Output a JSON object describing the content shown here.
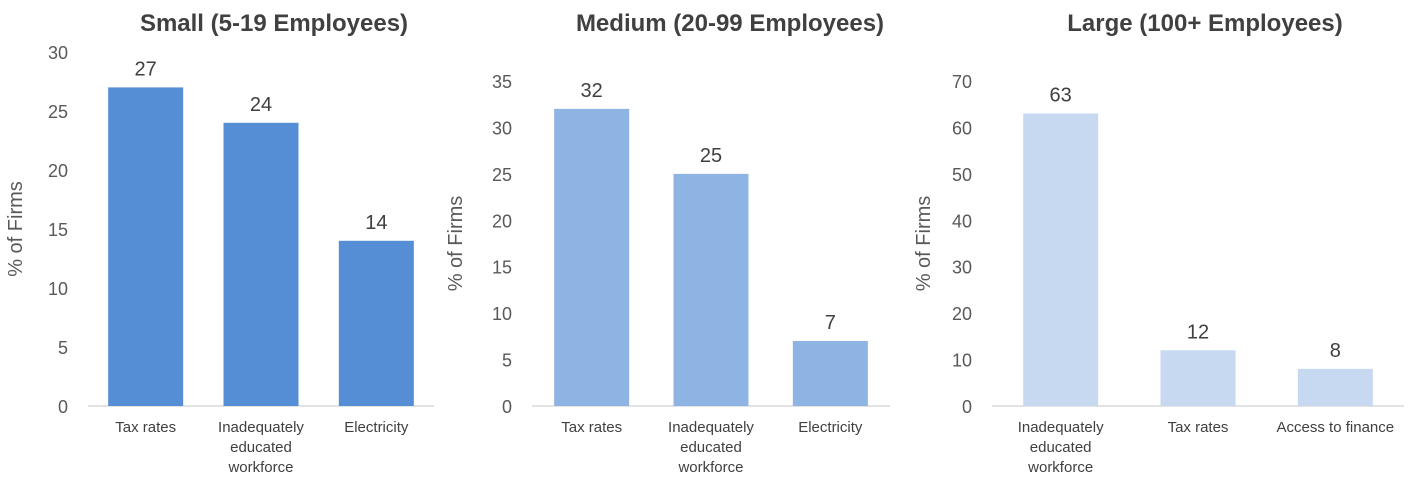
{
  "chart_data": [
    {
      "type": "bar",
      "title": "Small (5-19 Employees)",
      "ylabel": "% of Firms",
      "categories": [
        "Tax rates",
        "Inadequately educated workforce",
        "Electricity"
      ],
      "values": [
        27,
        24,
        14
      ],
      "ylim": [
        0,
        30
      ],
      "yticks": [
        0,
        5,
        10,
        15,
        20,
        25,
        30
      ],
      "color": "#558ed5"
    },
    {
      "type": "bar",
      "title": "Medium (20-99 Employees)",
      "ylabel": "% of Firms",
      "categories": [
        "Tax rates",
        "Inadequately educated workforce",
        "Electricity"
      ],
      "values": [
        32,
        25,
        7
      ],
      "ylim": [
        0,
        35
      ],
      "yticks": [
        0,
        5,
        10,
        15,
        20,
        25,
        30,
        35
      ],
      "color": "#8eb4e3"
    },
    {
      "type": "bar",
      "title": "Large (100+ Employees)",
      "ylabel": "% of Firms",
      "categories": [
        "Inadequately educated workforce",
        "Tax rates",
        "Access to finance"
      ],
      "values": [
        63,
        12,
        8
      ],
      "ylim": [
        0,
        70
      ],
      "yticks": [
        0,
        10,
        20,
        30,
        40,
        50,
        60,
        70
      ],
      "color": "#c6d9f1"
    }
  ]
}
